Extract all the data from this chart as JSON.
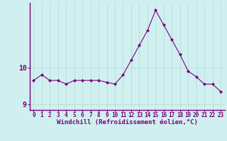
{
  "x": [
    0,
    1,
    2,
    3,
    4,
    5,
    6,
    7,
    8,
    9,
    10,
    11,
    12,
    13,
    14,
    15,
    16,
    17,
    18,
    19,
    20,
    21,
    22,
    23
  ],
  "y": [
    9.65,
    9.8,
    9.65,
    9.65,
    9.55,
    9.65,
    9.65,
    9.65,
    9.65,
    9.6,
    9.55,
    9.8,
    10.2,
    10.6,
    11.0,
    11.55,
    11.15,
    10.75,
    10.35,
    9.9,
    9.75,
    9.55,
    9.55,
    9.35
  ],
  "line_color": "#7b007b",
  "marker": "D",
  "marker_size": 2.0,
  "background_color": "#d0f0f0",
  "grid_color": "#b0d8d8",
  "spine_color": "#7b007b",
  "xlabel": "Windchill (Refroidissement éolien,°C)",
  "xlabel_fontsize": 6.5,
  "tick_fontsize": 5.5,
  "ytick_fontsize": 7,
  "xlim": [
    -0.5,
    23.5
  ],
  "ylim": [
    8.85,
    11.75
  ],
  "yticks": [
    9,
    10
  ],
  "xtick_labels": [
    "0",
    "1",
    "2",
    "3",
    "4",
    "5",
    "6",
    "7",
    "8",
    "9",
    "10",
    "11",
    "12",
    "13",
    "14",
    "15",
    "16",
    "17",
    "18",
    "19",
    "20",
    "21",
    "22",
    "23"
  ]
}
